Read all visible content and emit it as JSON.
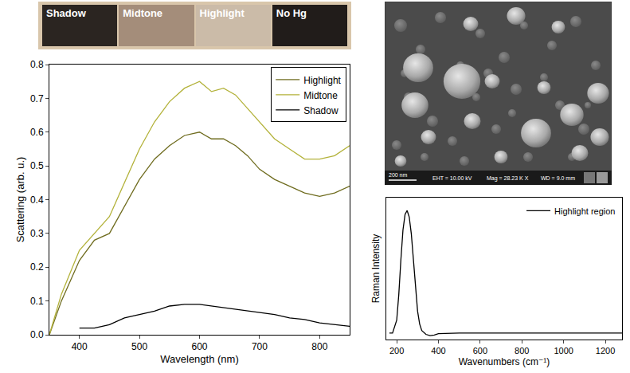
{
  "photo_strip": {
    "panels": [
      {
        "label": "Shadow",
        "color": "#2b2521"
      },
      {
        "label": "Midtone",
        "color": "#a48d7a"
      },
      {
        "label": "Highlight",
        "color": "#cbbba8"
      },
      {
        "label": "No Hg",
        "color": "#211c1a"
      }
    ]
  },
  "sem_image": {
    "scale_bar": "200 nm",
    "info": [
      "EHT = 10.00 kV",
      "Mag = 28.23 K X",
      "WD = 9.0 mm"
    ]
  },
  "chart_data": [
    {
      "type": "line",
      "x_label": "Wavelength (nm)",
      "y_label": "Scattering (arb. u.)",
      "x": [
        350,
        370,
        400,
        425,
        450,
        475,
        500,
        525,
        550,
        575,
        600,
        620,
        640,
        660,
        680,
        700,
        725,
        750,
        775,
        800,
        825,
        850
      ],
      "series": [
        {
          "name": "Highlight",
          "color": "#6f6c1f",
          "values": [
            0.0,
            0.1,
            0.22,
            0.28,
            0.3,
            0.38,
            0.46,
            0.52,
            0.56,
            0.59,
            0.6,
            0.58,
            0.58,
            0.56,
            0.53,
            0.49,
            0.46,
            0.44,
            0.42,
            0.41,
            0.42,
            0.44
          ]
        },
        {
          "name": "Midtone",
          "color": "#b3b23a",
          "values": [
            0.0,
            0.12,
            0.25,
            0.3,
            0.35,
            0.45,
            0.55,
            0.63,
            0.69,
            0.73,
            0.75,
            0.72,
            0.73,
            0.71,
            0.67,
            0.63,
            0.58,
            0.55,
            0.52,
            0.52,
            0.53,
            0.56
          ]
        },
        {
          "name": "Shadow",
          "color": "#000000",
          "values": [
            null,
            null,
            0.02,
            0.02,
            0.03,
            0.05,
            0.06,
            0.07,
            0.085,
            0.09,
            0.09,
            0.085,
            0.08,
            0.075,
            0.07,
            0.065,
            0.06,
            0.05,
            0.045,
            0.035,
            0.03,
            0.025
          ]
        }
      ],
      "xlim": [
        350,
        850
      ],
      "xticks": [
        400,
        500,
        600,
        700,
        800
      ],
      "ylim": [
        0,
        0.8
      ],
      "yticks": [
        {
          "value": 0,
          "label": "0.0"
        },
        0.1,
        0.2,
        0.3,
        0.4,
        0.5,
        0.6,
        0.7,
        0.8
      ],
      "legend": "top-right",
      "grid": false
    },
    {
      "type": "line",
      "x_label": "Wavenumbers (cm⁻¹)",
      "y_label": "Raman Intensity",
      "x": [
        165,
        180,
        200,
        210,
        220,
        230,
        240,
        250,
        260,
        270,
        280,
        290,
        300,
        310,
        320,
        340,
        360,
        380,
        400,
        500,
        600,
        700,
        800,
        900,
        1000,
        1100,
        1200,
        1280
      ],
      "series": [
        {
          "name": "Highlight region",
          "color": "#000000",
          "values": [
            0.05,
            0.05,
            0.15,
            0.35,
            0.62,
            0.85,
            0.97,
            1.0,
            0.95,
            0.82,
            0.62,
            0.4,
            0.22,
            0.12,
            0.07,
            0.04,
            0.03,
            0.035,
            0.045,
            0.05,
            0.05,
            0.05,
            0.05,
            0.05,
            0.05,
            0.05,
            0.05,
            0.05
          ]
        }
      ],
      "xlim": [
        150,
        1280
      ],
      "xticks": [
        200,
        400,
        600,
        800,
        1000,
        1200
      ],
      "ylim": [
        0,
        1.1
      ],
      "yticks": [],
      "tick_labels": "x",
      "legend": "top-right",
      "grid": false
    }
  ]
}
